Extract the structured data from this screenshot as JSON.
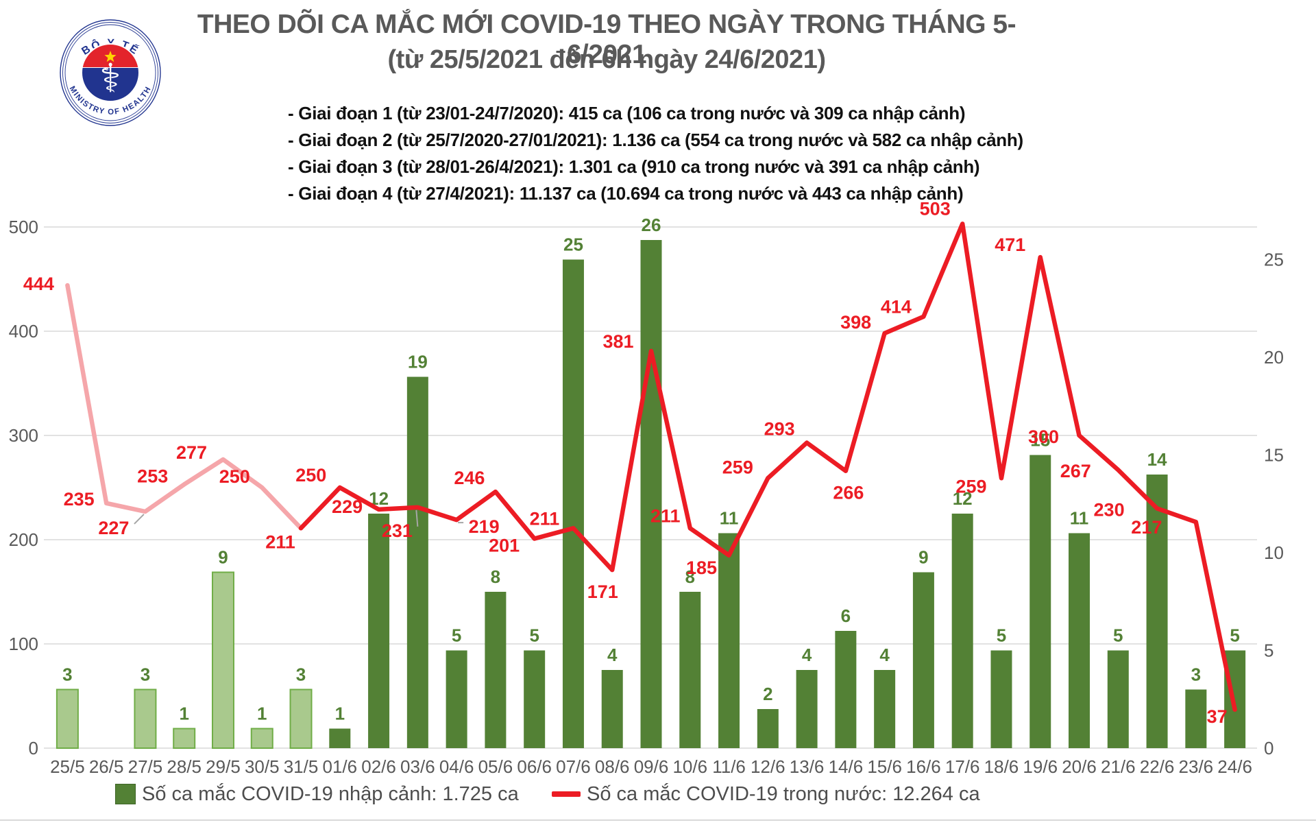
{
  "logo": {
    "top_text": "BỘ Y TẾ",
    "bottom_text": "MINISTRY OF HEALTH"
  },
  "header": {
    "title_line1": "THEO DÕI CA MẮC MỚI COVID-19 THEO NGÀY TRONG THÁNG 5-6/2021",
    "title_line2": "(từ 25/5/2021 đến 6h ngày 24/6/2021)",
    "phases": [
      "- Giai đoạn 1 (từ 23/01-24/7/2020): 415 ca (106 ca trong nước và 309 ca nhập cảnh)",
      "- Giai đoạn 2 (từ 25/7/2020-27/01/2021): 1.136 ca (554 ca trong nước và 582 ca nhập cảnh)",
      "- Giai đoạn 3 (từ 28/01-26/4/2021): 1.301 ca (910 ca trong nước và 391 ca nhập cảnh)",
      "- Giai đoạn 4 (từ 27/4/2021): 11.137 ca (10.694 ca trong nước và 443 ca nhập cảnh)"
    ]
  },
  "chart_data": {
    "type": "bar",
    "subtype": "bar+line combo, dual axis",
    "title": "Theo dõi ca mắc mới COVID-19 theo ngày trong tháng 5-6/2021",
    "categories": [
      "25/5",
      "26/5",
      "27/5",
      "28/5",
      "29/5",
      "30/5",
      "31/5",
      "01/6",
      "02/6",
      "03/6",
      "04/6",
      "05/6",
      "06/6",
      "07/6",
      "08/6",
      "09/6",
      "10/6",
      "11/6",
      "12/6",
      "13/6",
      "14/6",
      "15/6",
      "16/6",
      "17/6",
      "18/6",
      "19/6",
      "20/6",
      "21/6",
      "22/6",
      "23/6",
      "24/6"
    ],
    "series": [
      {
        "name": "Số ca mắc COVID-19 nhập cảnh",
        "type": "bar",
        "axis": "right",
        "values": [
          3,
          0,
          3,
          1,
          9,
          1,
          3,
          1,
          12,
          19,
          5,
          8,
          5,
          25,
          4,
          26,
          8,
          11,
          2,
          4,
          6,
          4,
          9,
          12,
          5,
          15,
          11,
          5,
          14,
          3,
          5
        ],
        "color": "#538135",
        "light_color": "#a9c98d",
        "light_border": "#70ad47",
        "light_until_index": 6,
        "label_color": "#538135"
      },
      {
        "name": "Số ca mắc COVID-19 trong nước",
        "type": "line",
        "axis": "left",
        "values": [
          444,
          235,
          227,
          253,
          277,
          250,
          211,
          250,
          229,
          231,
          219,
          246,
          201,
          211,
          171,
          381,
          211,
          185,
          259,
          293,
          266,
          398,
          414,
          503,
          259,
          471,
          300,
          267,
          230,
          217,
          37
        ],
        "color": "#ec1c24",
        "light_color": "#f5a6aa",
        "light_until_index": 6,
        "label_color": "#ec1c24",
        "label_offsets": [
          [
            -42,
            -2
          ],
          [
            -40,
            -6
          ],
          [
            -46,
            24
          ],
          [
            -46,
            -12
          ],
          [
            -46,
            -10
          ],
          [
            -40,
            -16
          ],
          [
            -30,
            20
          ],
          [
            -42,
            -18
          ],
          [
            -46,
            -4
          ],
          [
            -30,
            34
          ],
          [
            40,
            10
          ],
          [
            -38,
            -20
          ],
          [
            -44,
            10
          ],
          [
            -42,
            -14
          ],
          [
            -14,
            32
          ],
          [
            -48,
            -14
          ],
          [
            -36,
            -18
          ],
          [
            -40,
            18
          ],
          [
            -44,
            -16
          ],
          [
            -40,
            -20
          ],
          [
            4,
            32
          ],
          [
            -42,
            -16
          ],
          [
            -40,
            -14
          ],
          [
            -40,
            -22
          ],
          [
            -44,
            12
          ],
          [
            -44,
            -18
          ],
          [
            -52,
            2
          ],
          [
            -62,
            2
          ],
          [
            -70,
            2
          ],
          [
            -72,
            8
          ],
          [
            -26,
            10
          ]
        ],
        "leader_indices": [
          2,
          9,
          10
        ]
      }
    ],
    "left_axis": {
      "ticks": [
        0,
        100,
        200,
        300,
        400,
        500
      ],
      "max": 500,
      "label": ""
    },
    "right_axis": {
      "ticks": [
        0,
        5,
        10,
        15,
        20,
        25
      ],
      "max": 26,
      "label": ""
    },
    "grid": true,
    "legend_position": "bottom"
  },
  "legend": {
    "items": [
      {
        "swatch": "bar",
        "color": "#538135",
        "label": "Số ca mắc COVID-19 nhập cảnh: 1.725 ca"
      },
      {
        "swatch": "line",
        "color": "#ec1c24",
        "label": "Số ca mắc COVID-19 trong nước: 12.264 ca"
      }
    ]
  }
}
